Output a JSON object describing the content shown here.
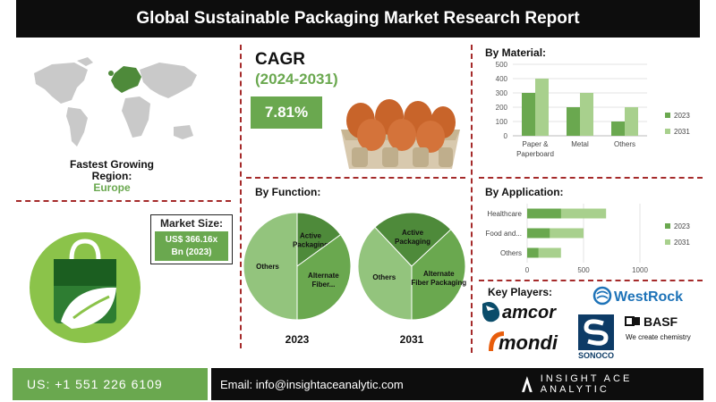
{
  "title": "Global Sustainable Packaging Market Research Report",
  "region": {
    "label_line1": "Fastest Growing",
    "label_line2": "Region",
    "colon": ":",
    "value": "Europe"
  },
  "market_size": {
    "label": "Market Size:",
    "value_line1": "US$ 366.16x",
    "value_line2": "Bn (2023)"
  },
  "cagr": {
    "label": "CAGR",
    "years": "(2024-2031)",
    "value": "7.81%"
  },
  "sections": {
    "function": "By Function:",
    "material": "By Material:",
    "application": "By Application:",
    "players": "Key Players:"
  },
  "key_players": [
    "WestRock",
    "amcor",
    "BASF",
    "We create chemistry",
    "mondi",
    "SONOCO"
  ],
  "footer": {
    "phone": "US: +1 551 226 6109",
    "email": "Email: info@insightaceanalytic.com",
    "brand": "INSIGHT ACE ANALYTIC"
  },
  "colors": {
    "dark_green": "#6aa84f",
    "light_green": "#a8d08d",
    "pie_dark": "#4e8a3a",
    "pie_mid": "#6aa84f",
    "pie_light": "#93c47d",
    "divider": "#a52a2a"
  },
  "chart_data": [
    {
      "type": "pie",
      "title": "By Function:",
      "label": "2023",
      "slices": [
        {
          "label": "Others",
          "value": 50
        },
        {
          "label": "Active Packaging",
          "value": 15
        },
        {
          "label": "Alternate Fiber...",
          "value": 35
        }
      ]
    },
    {
      "type": "pie",
      "title": "By Function:",
      "label": "2031",
      "slices": [
        {
          "label": "Others",
          "value": 38
        },
        {
          "label": "Active Packaging",
          "value": 25
        },
        {
          "label": "Alternate Fiber Packaging",
          "value": 37
        }
      ]
    },
    {
      "type": "bar",
      "title": "By Material:",
      "categories": [
        "Paper & Paperboard",
        "Metal",
        "Others"
      ],
      "series": [
        {
          "name": "2023",
          "values": [
            300,
            200,
            100
          ]
        },
        {
          "name": "2031",
          "values": [
            400,
            300,
            200
          ]
        }
      ],
      "ylim": [
        0,
        500
      ],
      "yticks": [
        "0",
        "100",
        "200",
        "300",
        "400",
        "500"
      ],
      "legend": "right"
    },
    {
      "type": "bar",
      "orientation": "horizontal",
      "title": "By Application:",
      "categories": [
        "Healthcare",
        "Food and...",
        "Others"
      ],
      "series": [
        {
          "name": "2023",
          "values": [
            300,
            200,
            100
          ]
        },
        {
          "name": "2031",
          "values": [
            700,
            500,
            300
          ]
        }
      ],
      "xlim": [
        0,
        1000
      ],
      "xticks": [
        "0",
        "500",
        "1000"
      ],
      "legend": "right"
    }
  ]
}
